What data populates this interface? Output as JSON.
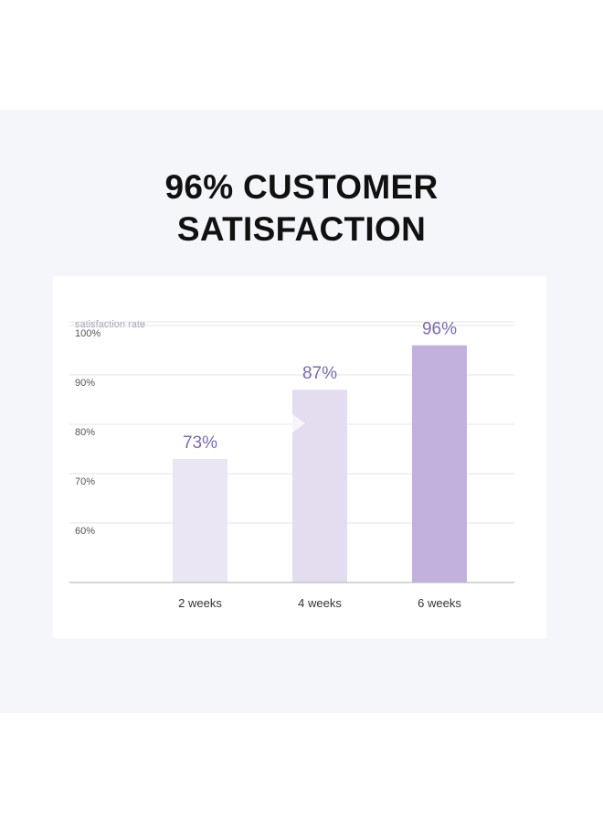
{
  "headline": {
    "line1": "96% CUSTOMER",
    "line2": "SATISFACTION"
  },
  "colors": {
    "bar_light": "#ebe6f4",
    "bar_mid": "#e4ddf0",
    "bar_accent": "#c2b0dd",
    "value_text": "#7d6aa8"
  },
  "chart_data": {
    "type": "bar",
    "ylabel": "satisfaction rate",
    "categories": [
      "2 weeks",
      "4 weeks",
      "6 weeks"
    ],
    "values": [
      73,
      87,
      96
    ],
    "value_labels": [
      "73%",
      "87%",
      "96%"
    ],
    "ylim": [
      50,
      100
    ],
    "yticks": [
      60,
      70,
      80,
      90,
      100
    ],
    "ytick_labels": [
      "60%",
      "70%",
      "80%",
      "90%",
      "100%"
    ],
    "grid": true,
    "highlight_index": 2
  }
}
